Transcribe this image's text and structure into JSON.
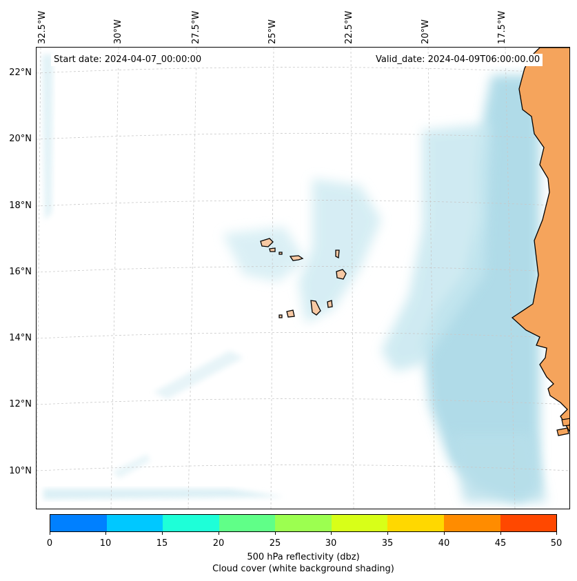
{
  "map": {
    "start_date": "Start date: 2024-04-07_00:00:00",
    "valid_date": "Valid_date: 2024-04-09T06:00:00.00",
    "lon_labels": [
      "32.5°W",
      "30°W",
      "27.5°W",
      "25°W",
      "22.5°W",
      "20°W",
      "17.5°W"
    ],
    "lat_labels": [
      "22°N",
      "20°N",
      "18°N",
      "16°N",
      "14°N",
      "12°N",
      "10°N"
    ],
    "colors": {
      "land": "#f5a45c",
      "island": "#f7c9a4",
      "cloud": "#a8d8e6",
      "grid": "#c8c8c8"
    }
  },
  "colorbar": {
    "ticks": [
      "0",
      "10",
      "15",
      "20",
      "25",
      "30",
      "35",
      "40",
      "45",
      "50"
    ],
    "colors": [
      "#0080ff",
      "#00c8ff",
      "#1effd8",
      "#60ff88",
      "#9cff50",
      "#d8ff18",
      "#ffd800",
      "#ff8c00",
      "#ff4800"
    ],
    "label": "500 hPa reflectivity (dbz)",
    "sublabel": "Cloud cover (white background shading)"
  }
}
